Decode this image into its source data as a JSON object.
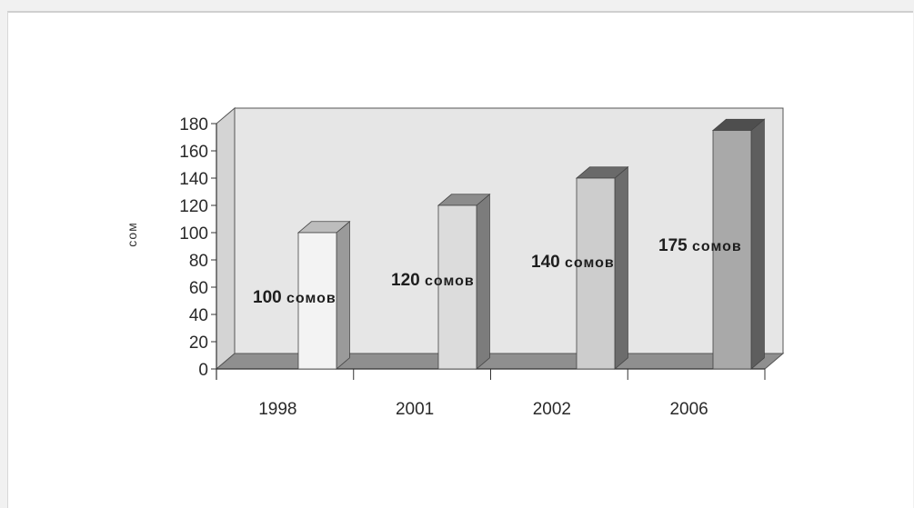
{
  "chart_data": {
    "type": "bar",
    "categories": [
      "1998",
      "2001",
      "2002",
      "2006"
    ],
    "values": [
      100,
      120,
      140,
      175
    ],
    "data_labels": [
      {
        "value": "100",
        "unit": "сомов"
      },
      {
        "value": "120",
        "unit": "сомов"
      },
      {
        "value": "140",
        "unit": "сомов"
      },
      {
        "value": "175",
        "unit": "сомов"
      }
    ],
    "title": "",
    "xlabel": "",
    "ylabel": "сом",
    "ylim": [
      0,
      180
    ],
    "yticks": [
      0,
      20,
      40,
      60,
      80,
      100,
      120,
      140,
      160,
      180
    ],
    "grid": false,
    "legend": "none",
    "style": "3d-column",
    "colors": {
      "back_wall": "#e6e6e6",
      "floor": "#8f8f8f",
      "bars": [
        {
          "front": "#f3f3f3",
          "side": "#9a9a9a",
          "top": "#bdbdbd"
        },
        {
          "front": "#dcdcdc",
          "side": "#7c7c7c",
          "top": "#8c8c8c"
        },
        {
          "front": "#cdcdcd",
          "side": "#6c6c6c",
          "top": "#6a6a6a"
        },
        {
          "front": "#a9a9a9",
          "side": "#5e5e5e",
          "top": "#4e4e4e"
        }
      ]
    }
  }
}
